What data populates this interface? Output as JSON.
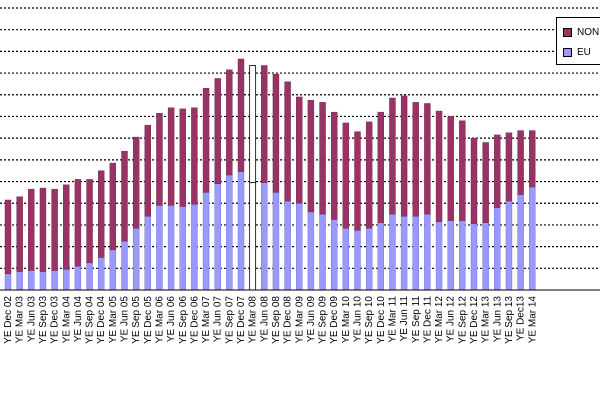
{
  "chart_data": {
    "type": "bar",
    "stacked": true,
    "title": "",
    "xlabel": "",
    "ylabel": "",
    "ylim": [
      0,
      260
    ],
    "grid": true,
    "legend_position": "top-right",
    "colors": {
      "eu": "#9999ff",
      "non_eu": "#993366",
      "highlight_border": "#000000"
    },
    "categories": [
      "YE Dec 02",
      "YE Mar 03",
      "YE Jun 03",
      "YE Sep 03",
      "YE Dec 03",
      "YE Mar 04",
      "YE Jun 04",
      "YE Sep 04",
      "YE Dec 04",
      "YE Mar 05",
      "YE Jun 05",
      "YE Sep 05",
      "YE Dec 05",
      "YE Mar 06",
      "YE Jun 06",
      "YE Sep 06",
      "YE Dec 06",
      "YE Mar 07",
      "YE Jun 07",
      "YE Sep 07",
      "YE Dec 07",
      "YE Mar 08",
      "YE Jun 08",
      "YE Sep 08",
      "YE Dec 08",
      "YE Mar 09",
      "YE Jun 09",
      "YE Sep 09",
      "YE Dec 09",
      "YE Mar 10",
      "YE Jun 10",
      "YE Sep 10",
      "YE Dec 10",
      "YE Mar 11",
      "YE Jun 11",
      "YE Sep 11",
      "YE Dec 11",
      "YE Mar 12",
      "YE Jun 12",
      "YE Sep 12",
      "YE Dec 12",
      "YE Mar 13",
      "YE Jun 13",
      "YE Sep 13",
      "YE Dec13",
      "YE Mar 14"
    ],
    "highlight_index": 21,
    "series": [
      {
        "name": "EU",
        "values": [
          15,
          17,
          18,
          17,
          18,
          19,
          22,
          25,
          30,
          37,
          45,
          57,
          68,
          78,
          78,
          77,
          79,
          90,
          98,
          106,
          109,
          99,
          99,
          90,
          82,
          80,
          72,
          70,
          65,
          57,
          55,
          57,
          62,
          70,
          68,
          68,
          70,
          63,
          64,
          64,
          61,
          62,
          76,
          82,
          88,
          95
        ]
      },
      {
        "name": "NON",
        "values": [
          68,
          69,
          75,
          77,
          75,
          78,
          80,
          77,
          80,
          80,
          83,
          84,
          84,
          85,
          90,
          90,
          89,
          96,
          97,
          97,
          104,
          108,
          108,
          109,
          110,
          98,
          103,
          103,
          99,
          97,
          91,
          98,
          102,
          107,
          111,
          105,
          102,
          102,
          96,
          92,
          79,
          74,
          67,
          63,
          59,
          52
        ]
      }
    ]
  }
}
